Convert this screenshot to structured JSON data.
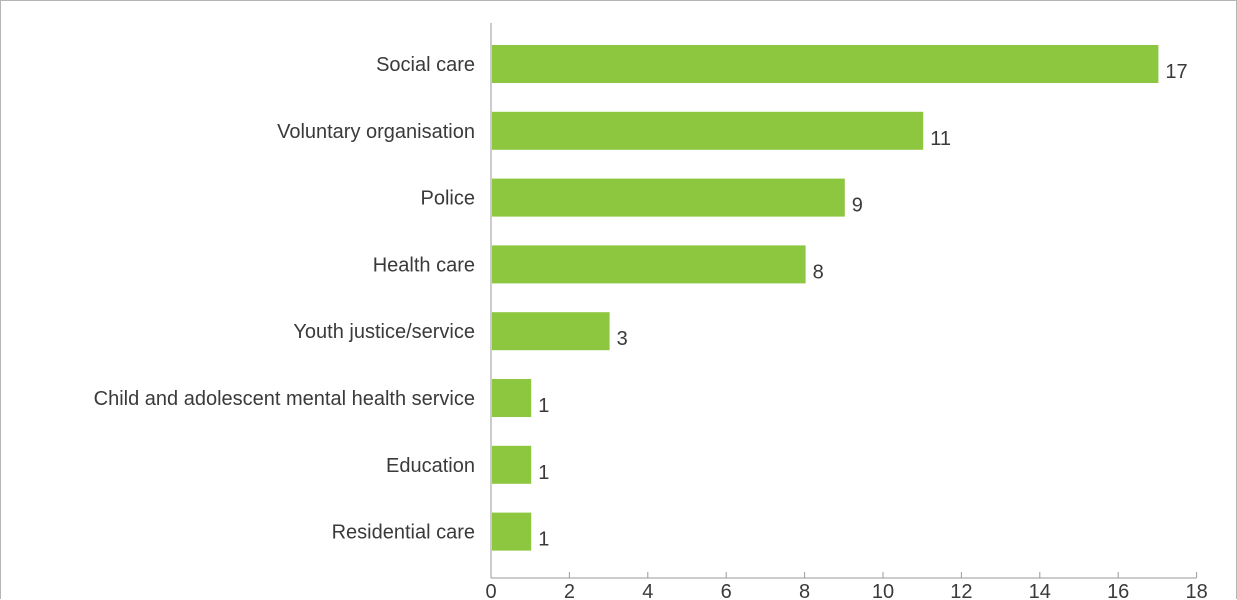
{
  "chart_data": {
    "type": "bar",
    "orientation": "horizontal",
    "categories": [
      "Social care",
      "Voluntary organisation",
      "Police",
      "Health care",
      "Youth justice/service",
      "Child and adolescent mental health service",
      "Education",
      "Residential care"
    ],
    "values": [
      17,
      11,
      9,
      8,
      3,
      1,
      1,
      1
    ],
    "value_labels": [
      "17",
      "11",
      "9",
      "8",
      "3",
      "1",
      "1",
      "1"
    ],
    "xlim": [
      0,
      18
    ],
    "x_ticks": [
      "0",
      "2",
      "4",
      "6",
      "8",
      "10",
      "12",
      "14",
      "16",
      "18"
    ],
    "grid": false,
    "legend": "none",
    "bar_color": "#8dc63f",
    "axis_color": "#9a9a9a",
    "text_color": "#3a3a3a"
  }
}
